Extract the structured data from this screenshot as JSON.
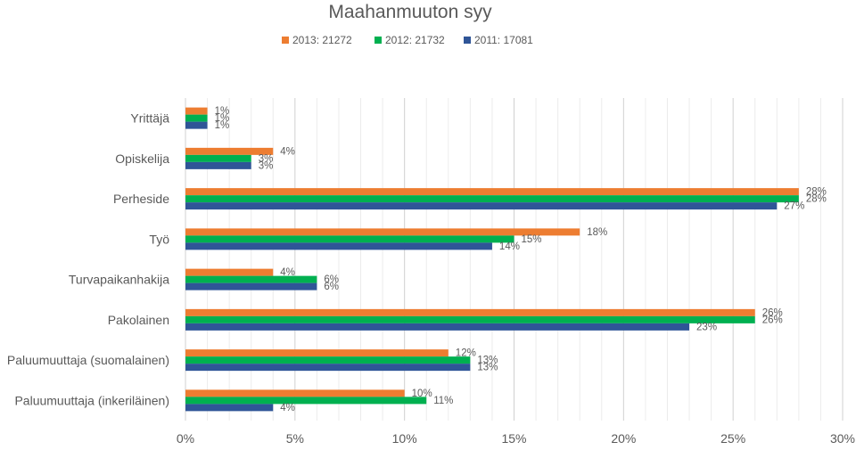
{
  "chart_data": {
    "type": "bar",
    "orientation": "horizontal",
    "title": "Maahanmuuton syy",
    "categories": [
      "Yrittäjä",
      "Opiskelija",
      "Perheside",
      "Työ",
      "Turvapaikanhakija",
      "Pakolainen",
      "Paluumuuttaja (suomalainen)",
      "Paluumuuttaja (inkeriläinen)"
    ],
    "series": [
      {
        "name": "2013: 21272",
        "color": "#ED7D31",
        "values": [
          1,
          4,
          28,
          18,
          4,
          26,
          12,
          10
        ]
      },
      {
        "name": "2012: 21732",
        "color": "#00B050",
        "values": [
          1,
          3,
          28,
          15,
          6,
          26,
          13,
          11
        ]
      },
      {
        "name": "2011: 17081",
        "color": "#2F5597",
        "values": [
          1,
          3,
          27,
          14,
          6,
          23,
          13,
          4
        ]
      }
    ],
    "value_suffix": "%",
    "xlim": [
      0,
      30
    ],
    "xticks": [
      "0%",
      "5%",
      "10%",
      "15%",
      "20%",
      "25%",
      "30%"
    ],
    "grid": true,
    "legend_position": "top"
  }
}
